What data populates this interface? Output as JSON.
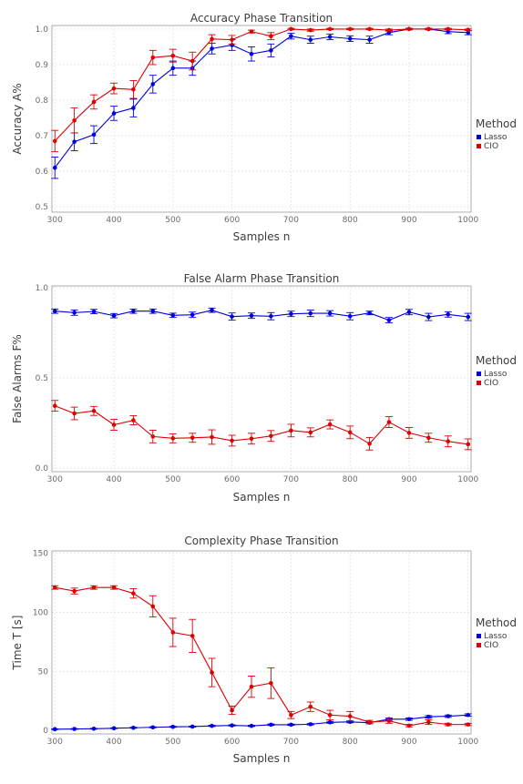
{
  "chart_data": [
    {
      "type": "line",
      "title": "Accuracy Phase Transition",
      "xlabel": "Samples n",
      "ylabel": "Accuracy A%",
      "xlim": [
        295,
        1005
      ],
      "ylim": [
        0.485,
        1.01
      ],
      "xticks": [
        "300",
        "400",
        "500",
        "600",
        "700",
        "800",
        "900",
        "1000"
      ],
      "yticks": [
        "0.5",
        "0.6",
        "0.7",
        "0.8",
        "0.9",
        "1.0"
      ],
      "grid": true,
      "legend": {
        "title": "Method",
        "position": "right",
        "entries": [
          "Lasso",
          "CIO"
        ]
      },
      "x": [
        300,
        333,
        366,
        400,
        433,
        466,
        500,
        533,
        566,
        600,
        633,
        666,
        700,
        733,
        766,
        800,
        833,
        866,
        900,
        933,
        966,
        1000
      ],
      "series": [
        {
          "name": "Lasso",
          "color": "#0000dd",
          "values": [
            0.61,
            0.683,
            0.703,
            0.763,
            0.778,
            0.845,
            0.89,
            0.89,
            0.945,
            0.955,
            0.93,
            0.94,
            0.98,
            0.97,
            0.978,
            0.973,
            0.97,
            0.99,
            1.0,
            1.0,
            0.993,
            0.99
          ],
          "errors": [
            0.03,
            0.025,
            0.025,
            0.02,
            0.025,
            0.025,
            0.02,
            0.02,
            0.015,
            0.015,
            0.02,
            0.018,
            0.008,
            0.01,
            0.008,
            0.008,
            0.01,
            0.006,
            0.002,
            0.002,
            0.006,
            0.006
          ]
        },
        {
          "name": "CIO",
          "color": "#dd0000",
          "values": [
            0.685,
            0.743,
            0.795,
            0.833,
            0.83,
            0.92,
            0.925,
            0.91,
            0.972,
            0.97,
            0.993,
            0.98,
            1.0,
            0.997,
            1.0,
            1.0,
            1.0,
            0.997,
            1.0,
            1.0,
            1.0,
            0.998
          ],
          "errors": [
            0.03,
            0.035,
            0.02,
            0.015,
            0.025,
            0.02,
            0.018,
            0.025,
            0.012,
            0.012,
            0.004,
            0.01,
            0.002,
            0.003,
            0.002,
            0.002,
            0.002,
            0.003,
            0.002,
            0.002,
            0.002,
            0.002
          ]
        }
      ]
    },
    {
      "type": "line",
      "title": "False Alarm Phase Transition",
      "xlabel": "Samples n",
      "ylabel": "False Alarms F%",
      "xlim": [
        295,
        1005
      ],
      "ylim": [
        -0.02,
        1.01
      ],
      "xticks": [
        "300",
        "400",
        "500",
        "600",
        "700",
        "800",
        "900",
        "1000"
      ],
      "yticks": [
        "0.0",
        "0.5",
        "1.0"
      ],
      "grid": true,
      "legend": {
        "title": "Method",
        "position": "right",
        "entries": [
          "Lasso",
          "CIO"
        ]
      },
      "x": [
        300,
        333,
        366,
        400,
        433,
        466,
        500,
        533,
        566,
        600,
        633,
        666,
        700,
        733,
        766,
        800,
        833,
        866,
        900,
        933,
        966,
        1000
      ],
      "series": [
        {
          "name": "Lasso",
          "color": "#0000dd",
          "values": [
            0.87,
            0.862,
            0.868,
            0.845,
            0.87,
            0.87,
            0.847,
            0.85,
            0.875,
            0.84,
            0.845,
            0.842,
            0.855,
            0.858,
            0.858,
            0.842,
            0.86,
            0.82,
            0.865,
            0.838,
            0.852,
            0.838
          ],
          "errors": [
            0.012,
            0.015,
            0.012,
            0.012,
            0.012,
            0.012,
            0.012,
            0.015,
            0.012,
            0.02,
            0.015,
            0.02,
            0.015,
            0.018,
            0.015,
            0.02,
            0.01,
            0.015,
            0.015,
            0.02,
            0.015,
            0.02
          ]
        },
        {
          "name": "CIO",
          "color": "#dd0000",
          "values": [
            0.345,
            0.303,
            0.317,
            0.24,
            0.265,
            0.175,
            0.165,
            0.168,
            0.172,
            0.152,
            0.163,
            0.178,
            0.208,
            0.198,
            0.242,
            0.198,
            0.135,
            0.255,
            0.195,
            0.168,
            0.148,
            0.132
          ],
          "errors": [
            0.03,
            0.035,
            0.025,
            0.03,
            0.025,
            0.035,
            0.025,
            0.025,
            0.04,
            0.03,
            0.03,
            0.03,
            0.035,
            0.025,
            0.025,
            0.035,
            0.035,
            0.03,
            0.03,
            0.025,
            0.03,
            0.03
          ]
        }
      ]
    },
    {
      "type": "line",
      "title": "Complexity Phase Transition",
      "xlabel": "Samples n",
      "ylabel": "Time T [s]",
      "xlim": [
        295,
        1005
      ],
      "ylim": [
        -3,
        152
      ],
      "xticks": [
        "300",
        "400",
        "500",
        "600",
        "700",
        "800",
        "900",
        "1000"
      ],
      "yticks": [
        "0",
        "50",
        "100",
        "150"
      ],
      "grid": true,
      "legend": {
        "title": "Method",
        "position": "right",
        "entries": [
          "Lasso",
          "CIO"
        ]
      },
      "x": [
        300,
        333,
        366,
        400,
        433,
        466,
        500,
        533,
        566,
        600,
        633,
        666,
        700,
        733,
        766,
        800,
        833,
        866,
        900,
        933,
        966,
        1000
      ],
      "series": [
        {
          "name": "Lasso",
          "color": "#0000dd",
          "values": [
            1,
            1.2,
            1.4,
            1.8,
            2.2,
            2.6,
            3,
            3.2,
            3.8,
            4.2,
            3.8,
            4.8,
            4.8,
            5.2,
            6.8,
            7.2,
            6.5,
            9.5,
            9.5,
            11.5,
            12,
            13
          ],
          "errors": [
            0.3,
            0.3,
            0.3,
            0.3,
            0.4,
            0.4,
            0.4,
            0.4,
            0.5,
            0.5,
            0.5,
            0.6,
            0.6,
            0.6,
            0.8,
            0.8,
            0.8,
            1,
            1,
            1,
            1,
            1
          ]
        },
        {
          "name": "CIO",
          "color": "#dd0000",
          "values": [
            121,
            118,
            121,
            121,
            116,
            105,
            83,
            80,
            49,
            17,
            37,
            40,
            13,
            20,
            13,
            12,
            7,
            8,
            4,
            7,
            5,
            5
          ],
          "errors": [
            1.5,
            2.5,
            1.5,
            1.5,
            4,
            9,
            12,
            14,
            12,
            3.5,
            9,
            13,
            3,
            4,
            4,
            4,
            1.5,
            2,
            1,
            2,
            1,
            1
          ]
        }
      ]
    }
  ]
}
